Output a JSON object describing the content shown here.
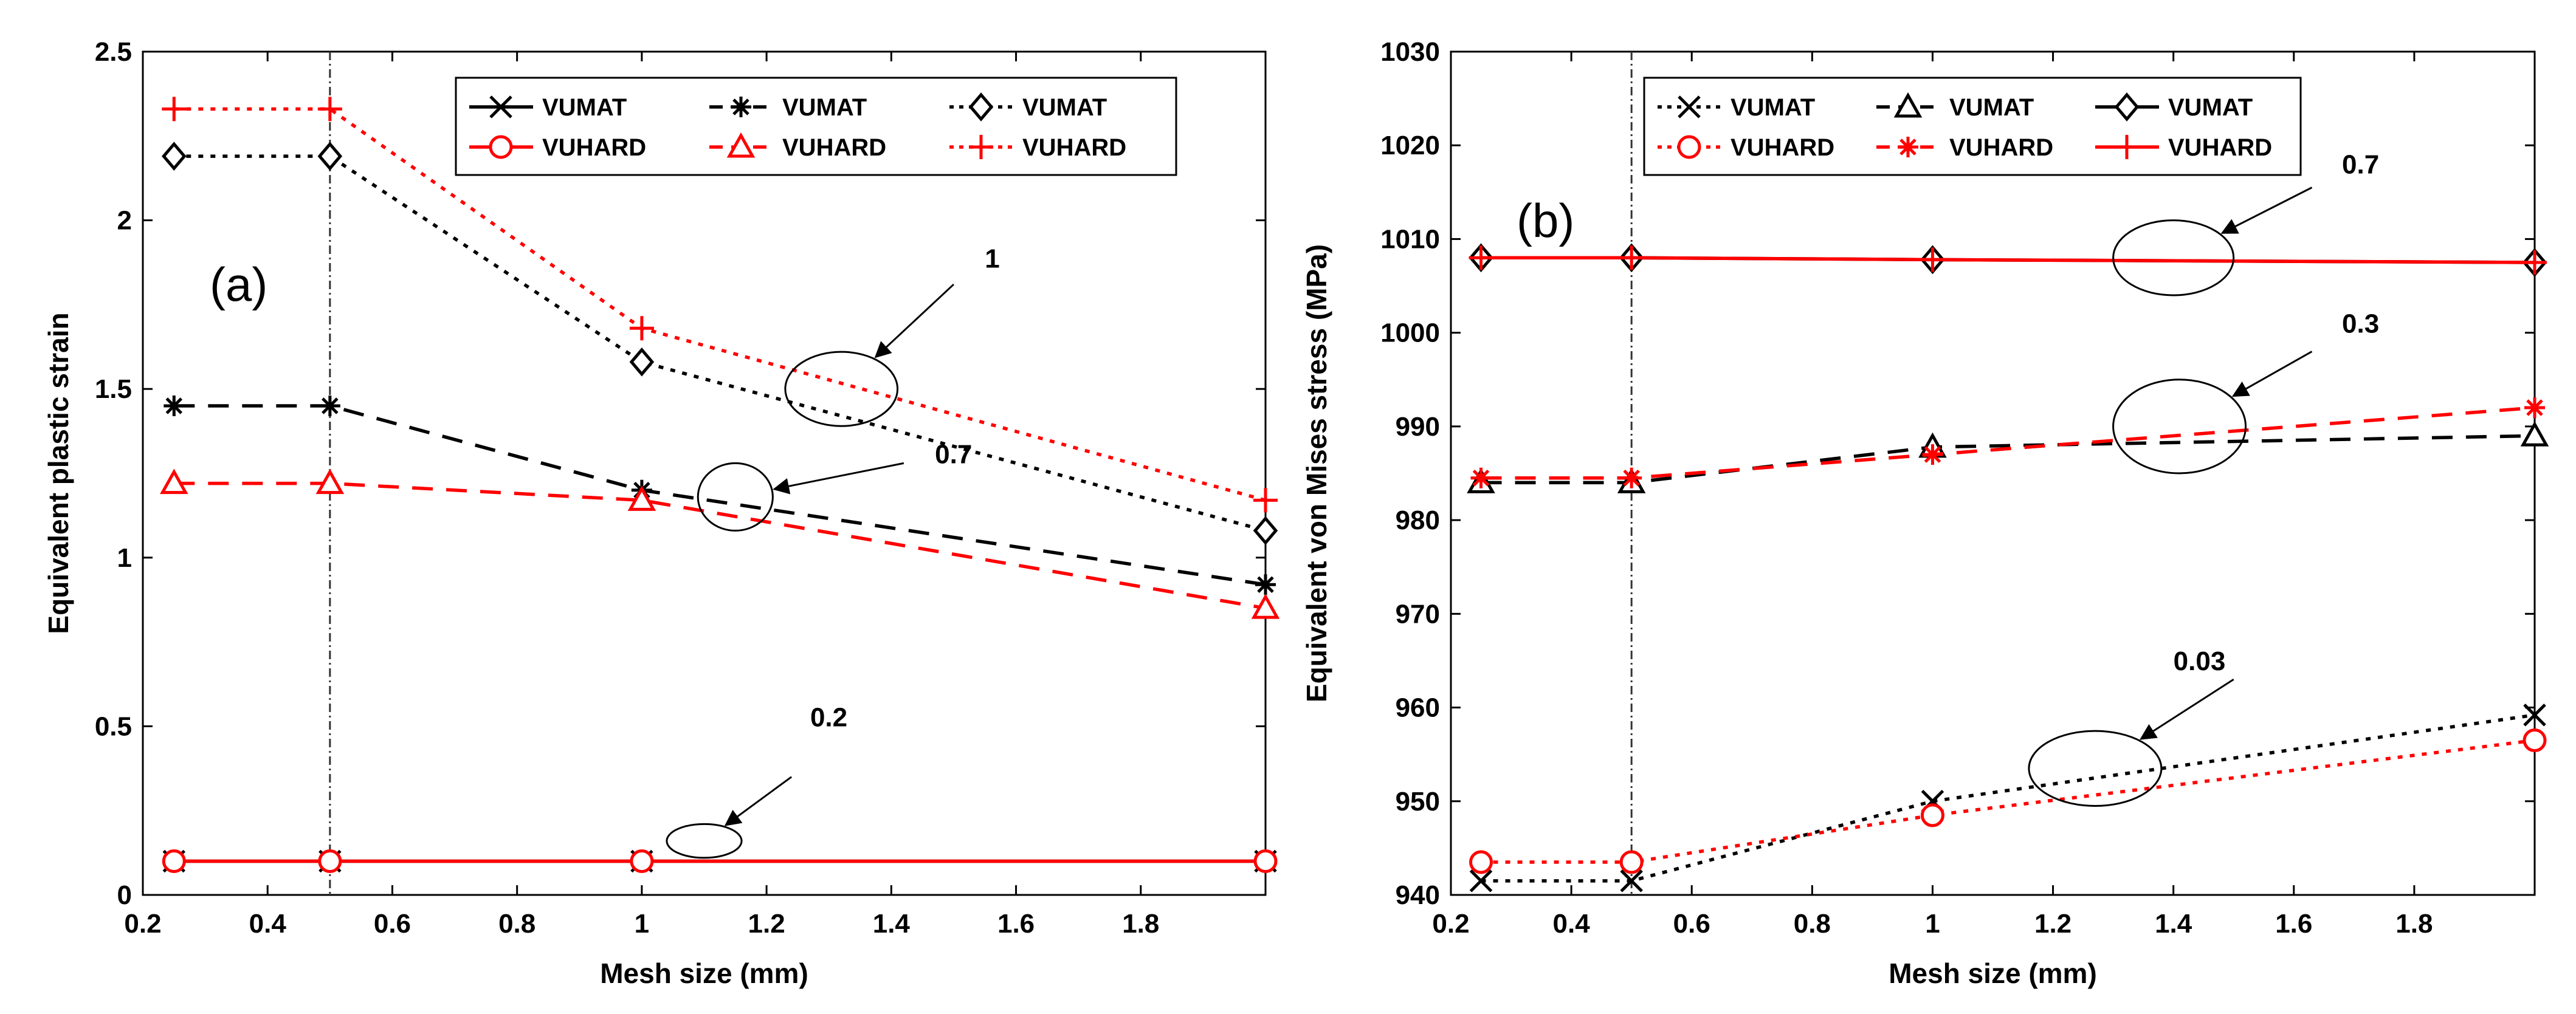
{
  "colors": {
    "vumat": "#000000",
    "vuhard": "#ff0000"
  },
  "chart_data": [
    {
      "type": "line",
      "panel": "(a)",
      "xlabel": "Mesh size (mm)",
      "ylabel": "Equivalent plastic strain",
      "xlim": [
        0.2,
        2.0
      ],
      "ylim": [
        0,
        2.5
      ],
      "xticks": [
        0.2,
        0.4,
        0.6,
        0.8,
        1.0,
        1.2,
        1.4,
        1.6,
        1.8
      ],
      "xtick_labels": [
        "0.2",
        "0.4",
        "0.6",
        "0.8",
        "1",
        "1.2",
        "1.4",
        "1.6",
        "1.8"
      ],
      "yticks": [
        0,
        0.5,
        1,
        1.5,
        2,
        2.5
      ],
      "ytick_labels": [
        "0",
        "0.5",
        "1",
        "1.5",
        "2",
        "2.5"
      ],
      "reference_line_x": 0.5,
      "legend": {
        "position": "top-right",
        "columns": 3
      },
      "series": [
        {
          "name": "VUMAT",
          "color": "vumat",
          "dash": "solid",
          "marker": "x",
          "x": [
            0.25,
            0.5,
            1,
            2
          ],
          "values": [
            0.1,
            0.1,
            0.1,
            0.1
          ]
        },
        {
          "name": "VUHARD",
          "color": "vuhard",
          "dash": "solid",
          "marker": "o",
          "x": [
            0.25,
            0.5,
            1,
            2
          ],
          "values": [
            0.1,
            0.1,
            0.1,
            0.1
          ]
        },
        {
          "name": "VUMAT",
          "color": "vumat",
          "dash": "dashed",
          "marker": "asterisk",
          "x": [
            0.25,
            0.5,
            1,
            2
          ],
          "values": [
            1.45,
            1.45,
            1.2,
            0.92
          ]
        },
        {
          "name": "VUHARD",
          "color": "vuhard",
          "dash": "dashed",
          "marker": "triangle",
          "x": [
            0.25,
            0.5,
            1,
            2
          ],
          "values": [
            1.22,
            1.22,
            1.17,
            0.85
          ]
        },
        {
          "name": "VUMAT",
          "color": "vumat",
          "dash": "dotted",
          "marker": "diamond",
          "x": [
            0.25,
            0.5,
            1,
            2
          ],
          "values": [
            2.19,
            2.19,
            1.58,
            1.08
          ]
        },
        {
          "name": "VUHARD",
          "color": "vuhard",
          "dash": "dotted",
          "marker": "plus",
          "x": [
            0.25,
            0.5,
            1,
            2
          ],
          "values": [
            2.33,
            2.33,
            1.68,
            1.17
          ]
        }
      ],
      "legend_order": [
        0,
        2,
        4,
        1,
        3,
        5
      ],
      "annotations": [
        {
          "text": "1",
          "ellipse": {
            "cx": 1.32,
            "cy": 1.5,
            "rx": 0.09,
            "ry": 0.11
          },
          "arrow_from": [
            1.5,
            1.81
          ],
          "text_at": [
            1.55,
            1.86
          ]
        },
        {
          "text": "0.7",
          "ellipse": {
            "cx": 1.15,
            "cy": 1.18,
            "rx": 0.06,
            "ry": 0.1
          },
          "arrow_from": [
            1.42,
            1.28
          ],
          "text_at": [
            1.47,
            1.28
          ]
        },
        {
          "text": "0.2",
          "ellipse": {
            "cx": 1.1,
            "cy": 0.16,
            "rx": 0.06,
            "ry": 0.05
          },
          "arrow_from": [
            1.24,
            0.35
          ],
          "text_at": [
            1.27,
            0.5
          ]
        }
      ]
    },
    {
      "type": "line",
      "panel": "(b)",
      "xlabel": "Mesh size (mm)",
      "ylabel": "Equivalent von Mises stress (MPa)",
      "xlim": [
        0.2,
        2.0
      ],
      "ylim": [
        940,
        1030
      ],
      "xticks": [
        0.2,
        0.4,
        0.6,
        0.8,
        1.0,
        1.2,
        1.4,
        1.6,
        1.8
      ],
      "xtick_labels": [
        "0.2",
        "0.4",
        "0.6",
        "0.8",
        "1",
        "1.2",
        "1.4",
        "1.6",
        "1.8"
      ],
      "yticks": [
        940,
        950,
        960,
        970,
        980,
        990,
        1000,
        1010,
        1020,
        1030
      ],
      "ytick_labels": [
        "940",
        "950",
        "960",
        "970",
        "980",
        "990",
        "1000",
        "1010",
        "1020",
        "1030"
      ],
      "reference_line_x": 0.5,
      "legend": {
        "position": "top",
        "columns": 3
      },
      "series": [
        {
          "name": "VUMAT",
          "color": "vumat",
          "dash": "dotted",
          "marker": "x",
          "x": [
            0.25,
            0.5,
            1,
            2
          ],
          "values": [
            941.5,
            941.5,
            950,
            959.2
          ]
        },
        {
          "name": "VUHARD",
          "color": "vuhard",
          "dash": "dotted",
          "marker": "o",
          "x": [
            0.25,
            0.5,
            1,
            2
          ],
          "values": [
            943.5,
            943.5,
            948.5,
            956.5
          ]
        },
        {
          "name": "VUMAT",
          "color": "vumat",
          "dash": "dashed",
          "marker": "triangle",
          "x": [
            0.25,
            0.5,
            1,
            2
          ],
          "values": [
            984,
            984,
            987.8,
            989
          ]
        },
        {
          "name": "VUHARD",
          "color": "vuhard",
          "dash": "dashed",
          "marker": "asterisk",
          "x": [
            0.25,
            0.5,
            1,
            2
          ],
          "values": [
            984.5,
            984.5,
            987,
            992
          ]
        },
        {
          "name": "VUMAT",
          "color": "vumat",
          "dash": "solid",
          "marker": "diamond",
          "x": [
            0.25,
            0.5,
            1,
            2
          ],
          "values": [
            1008,
            1008,
            1007.8,
            1007.5
          ]
        },
        {
          "name": "VUHARD",
          "color": "vuhard",
          "dash": "solid",
          "marker": "plus",
          "x": [
            0.25,
            0.5,
            1,
            2
          ],
          "values": [
            1008,
            1008,
            1007.8,
            1007.5
          ]
        }
      ],
      "legend_order": [
        0,
        2,
        4,
        1,
        3,
        5
      ],
      "annotations": [
        {
          "text": "0.7",
          "ellipse": {
            "cx": 1.4,
            "cy": 1008,
            "rx": 0.1,
            "ry": 4
          },
          "arrow_from": [
            1.63,
            1015.5
          ],
          "text_at": [
            1.68,
            1017
          ]
        },
        {
          "text": "0.3",
          "ellipse": {
            "cx": 1.41,
            "cy": 990,
            "rx": 0.11,
            "ry": 5
          },
          "arrow_from": [
            1.63,
            998
          ],
          "text_at": [
            1.68,
            1000
          ]
        },
        {
          "text": "0.03",
          "ellipse": {
            "cx": 1.27,
            "cy": 953.5,
            "rx": 0.11,
            "ry": 4
          },
          "arrow_from": [
            1.5,
            963
          ],
          "text_at": [
            1.4,
            964
          ]
        }
      ]
    }
  ]
}
